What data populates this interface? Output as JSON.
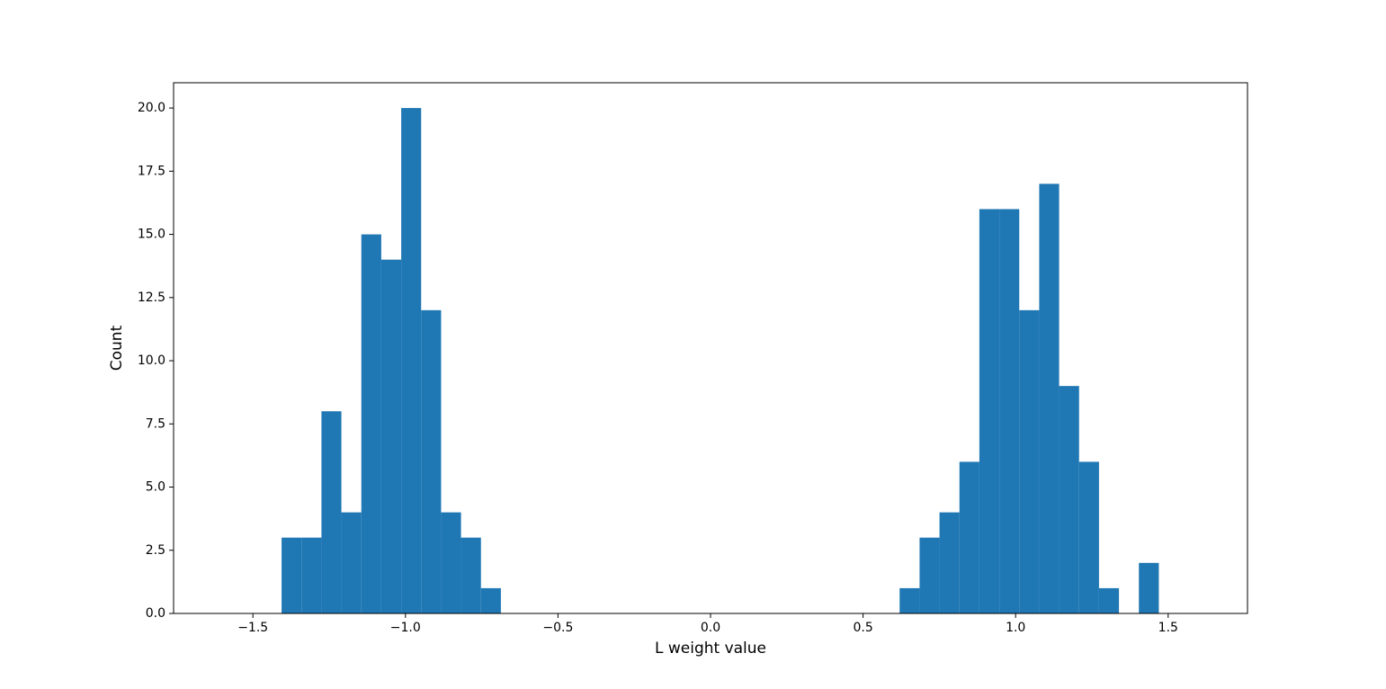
{
  "chart_data": {
    "type": "histogram",
    "xlabel": "L weight value",
    "ylabel": "Count",
    "color": "#1f77b4",
    "bins": [
      -1.406,
      -1.3407,
      -1.2753,
      -1.21,
      -1.1446,
      -1.0793,
      -1.0139,
      -0.9486,
      -0.8832,
      -0.8179,
      -0.7525,
      -0.6872,
      -0.6218,
      -0.5565,
      -0.4911,
      -0.4258,
      -0.3604,
      -0.2951,
      -0.2297,
      -0.1644,
      -0.099,
      -0.0337,
      0.0317,
      0.097,
      0.1624,
      0.2277,
      0.2931,
      0.3584,
      0.4238,
      0.4891,
      0.5545,
      0.6198,
      0.6852,
      0.7505,
      0.8159,
      0.8812,
      0.9466,
      1.0119,
      1.0773,
      1.1426,
      1.208,
      1.2733,
      1.3387,
      1.404,
      1.4694
    ],
    "values": [
      3,
      3,
      8,
      4,
      15,
      14,
      20,
      12,
      4,
      3,
      1,
      0,
      0,
      0,
      0,
      0,
      0,
      0,
      0,
      0,
      0,
      0,
      0,
      0,
      0,
      0,
      0,
      0,
      0,
      0,
      0,
      1,
      3,
      4,
      6,
      16,
      16,
      12,
      17,
      9,
      6,
      1,
      0,
      2
    ],
    "xlim": [
      -1.76,
      1.76
    ],
    "xticks": [
      {
        "value": -1.5,
        "label": "−1.5"
      },
      {
        "value": -1.0,
        "label": "−1.0"
      },
      {
        "value": -0.5,
        "label": "−0.5"
      },
      {
        "value": 0,
        "label": "0.0"
      },
      {
        "value": 0.5,
        "label": "0.5"
      },
      {
        "value": 1.0,
        "label": "1.0"
      },
      {
        "value": 1.5,
        "label": "1.5"
      }
    ],
    "ylim": [
      0,
      21
    ],
    "yticks": [
      {
        "value": 0,
        "label": "0.0"
      },
      {
        "value": 2.5,
        "label": "2.5"
      },
      {
        "value": 5,
        "label": "5.0"
      },
      {
        "value": 7.5,
        "label": "7.5"
      },
      {
        "value": 10,
        "label": "10.0"
      },
      {
        "value": 12.5,
        "label": "12.5"
      },
      {
        "value": 15,
        "label": "15.0"
      },
      {
        "value": 17.5,
        "label": "17.5"
      },
      {
        "value": 20,
        "label": "20.0"
      }
    ],
    "grid": false
  }
}
